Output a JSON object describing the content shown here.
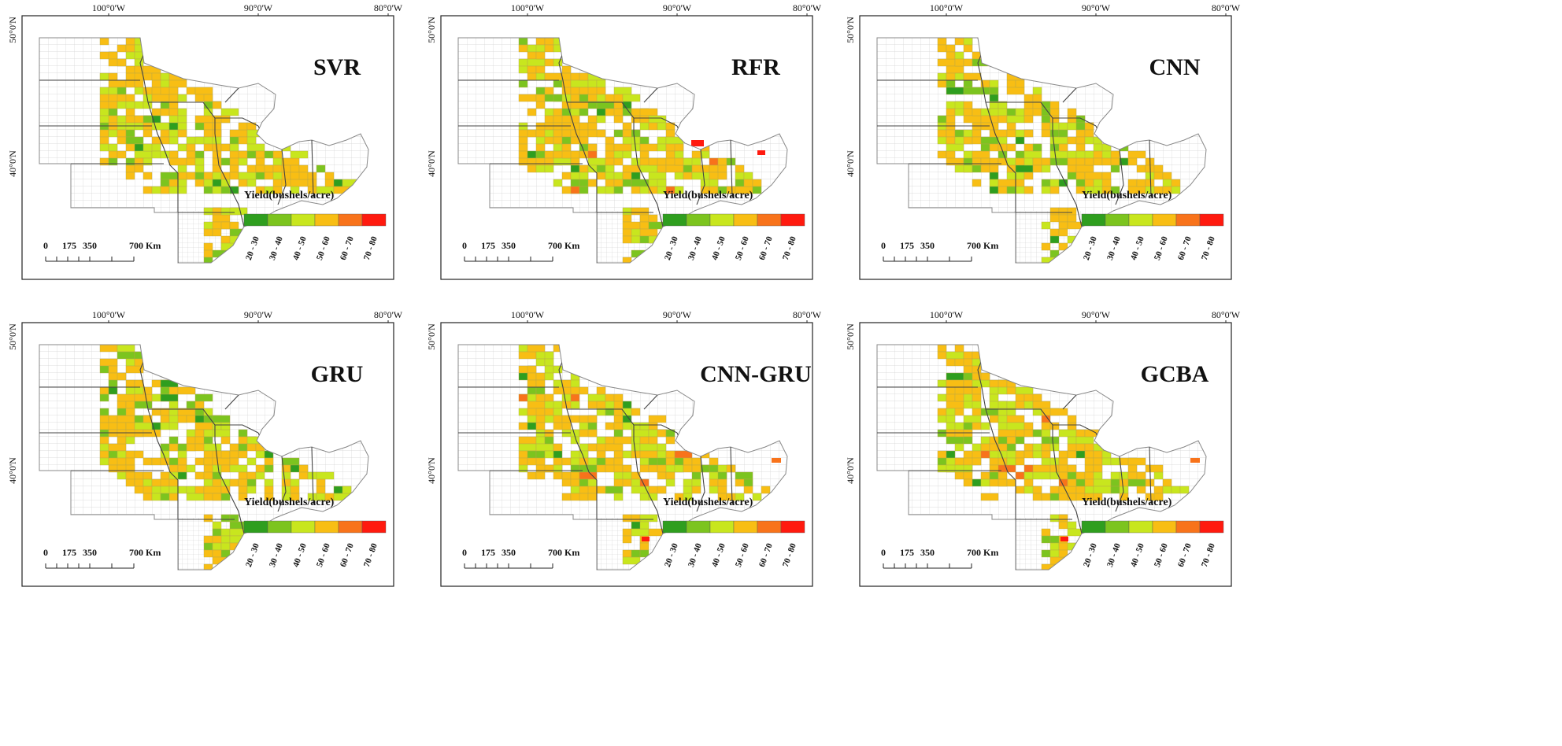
{
  "axes": {
    "lon_labels": [
      "100°0'W",
      "90°0'W",
      "80°0'W"
    ],
    "lat_labels": [
      "50°0'N",
      "40°0'N"
    ]
  },
  "panels": [
    {
      "title": "SVR",
      "variant": 0
    },
    {
      "title": "RFR",
      "variant": 1
    },
    {
      "title": "CNN",
      "variant": 2
    },
    {
      "title": "GRU",
      "variant": 3
    },
    {
      "title": "CNN-GRU",
      "variant": 4
    },
    {
      "title": "GCBA",
      "variant": 5
    }
  ],
  "legend": {
    "title": "Yield(bushels/acre)",
    "classes": [
      {
        "label": "20 - 30",
        "color": "#2f9e1f"
      },
      {
        "label": "30 - 40",
        "color": "#7cc41f"
      },
      {
        "label": "40 - 50",
        "color": "#c8e61e"
      },
      {
        "label": "50 - 60",
        "color": "#f8be14"
      },
      {
        "label": "60 - 70",
        "color": "#f8731b"
      },
      {
        "label": "70 - 80",
        "color": "#ff1a0f"
      }
    ]
  },
  "scalebar": {
    "labels": [
      "0",
      "175",
      "350",
      "700 Km"
    ]
  },
  "colors": {
    "county_border": "#c8c8c8",
    "state_border": "#444444",
    "frame": "#222222"
  }
}
